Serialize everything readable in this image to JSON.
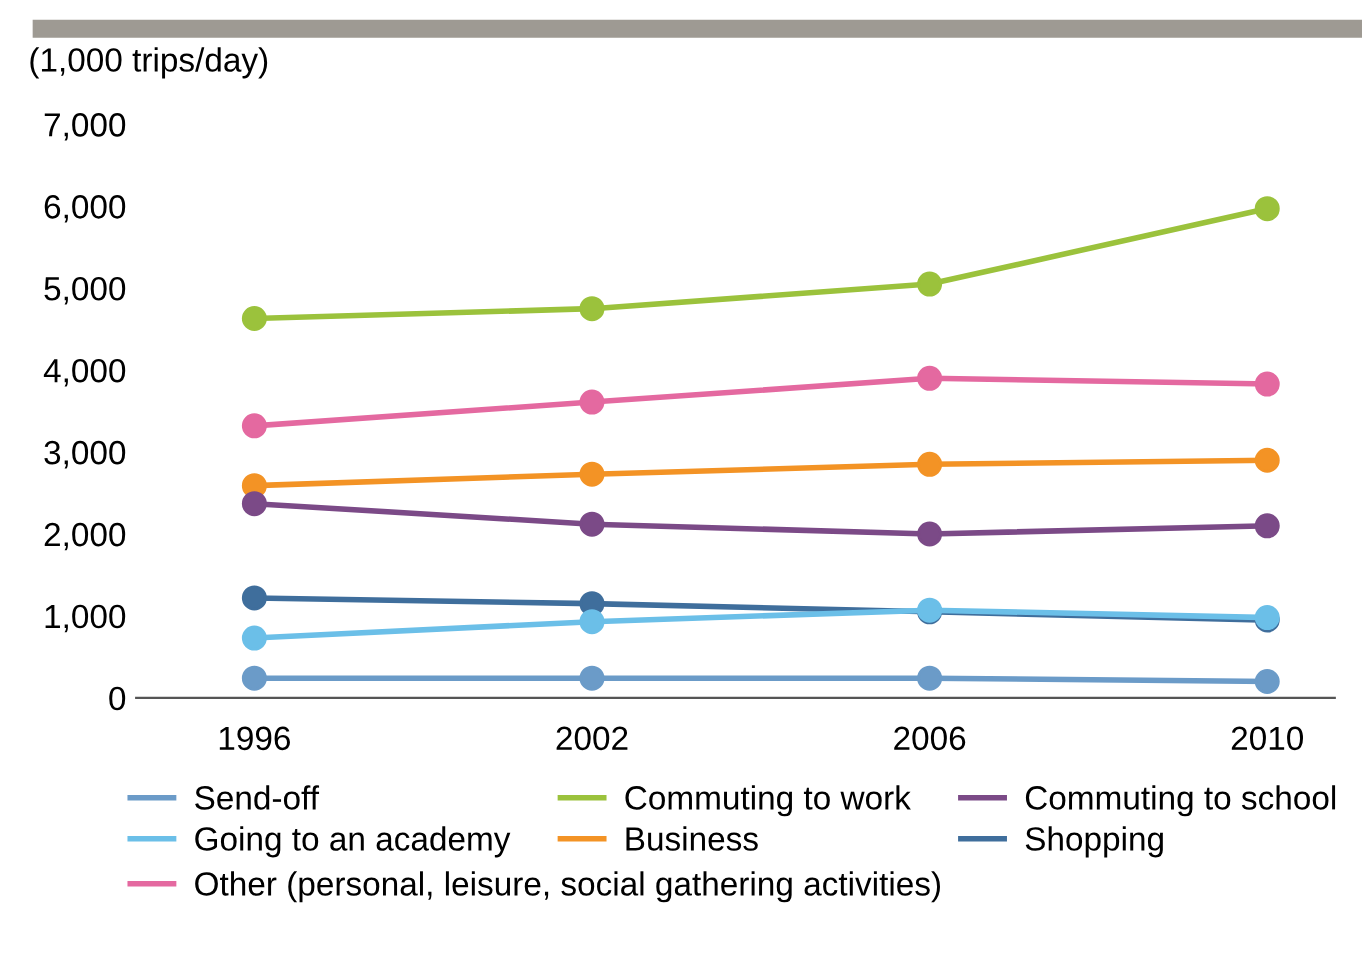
{
  "chart_data": {
    "type": "line",
    "ylabel": "(1,000 trips/day)",
    "categories": [
      "1996",
      "2002",
      "2006",
      "2010"
    ],
    "series": [
      {
        "name": "Send-off",
        "color": "#6b9bc8",
        "values": [
          240,
          240,
          240,
          200
        ]
      },
      {
        "name": "Commuting to work",
        "color": "#9bc23c",
        "values": [
          4630,
          4750,
          5050,
          5970
        ]
      },
      {
        "name": "Commuting to school",
        "color": "#7b4a87",
        "values": [
          2370,
          2120,
          2000,
          2100
        ]
      },
      {
        "name": "Going to an academy",
        "color": "#6bbfe8",
        "values": [
          730,
          930,
          1070,
          980
        ]
      },
      {
        "name": "Business",
        "color": "#f39325",
        "values": [
          2590,
          2730,
          2850,
          2900
        ]
      },
      {
        "name": "Shopping",
        "color": "#3f6e9c",
        "values": [
          1220,
          1150,
          1050,
          950
        ]
      },
      {
        "name": "Other (personal, leisure, social gathering activities)",
        "color": "#e469a0",
        "values": [
          3320,
          3610,
          3900,
          3830
        ]
      }
    ],
    "ylim": [
      0,
      7000
    ],
    "yticks": [
      0,
      {
        "value": 1000,
        "label": "1,000"
      },
      {
        "value": 2000,
        "label": "2,000"
      },
      {
        "value": 3000,
        "label": "3,000"
      },
      {
        "value": 4000,
        "label": "4,000"
      },
      {
        "value": 5000,
        "label": "5,000"
      },
      {
        "value": 6000,
        "label": "6,000"
      },
      {
        "value": 7000,
        "label": "7,000"
      }
    ],
    "grid": false,
    "legend": "bottom",
    "marker": "circle",
    "line_style": "solid"
  }
}
